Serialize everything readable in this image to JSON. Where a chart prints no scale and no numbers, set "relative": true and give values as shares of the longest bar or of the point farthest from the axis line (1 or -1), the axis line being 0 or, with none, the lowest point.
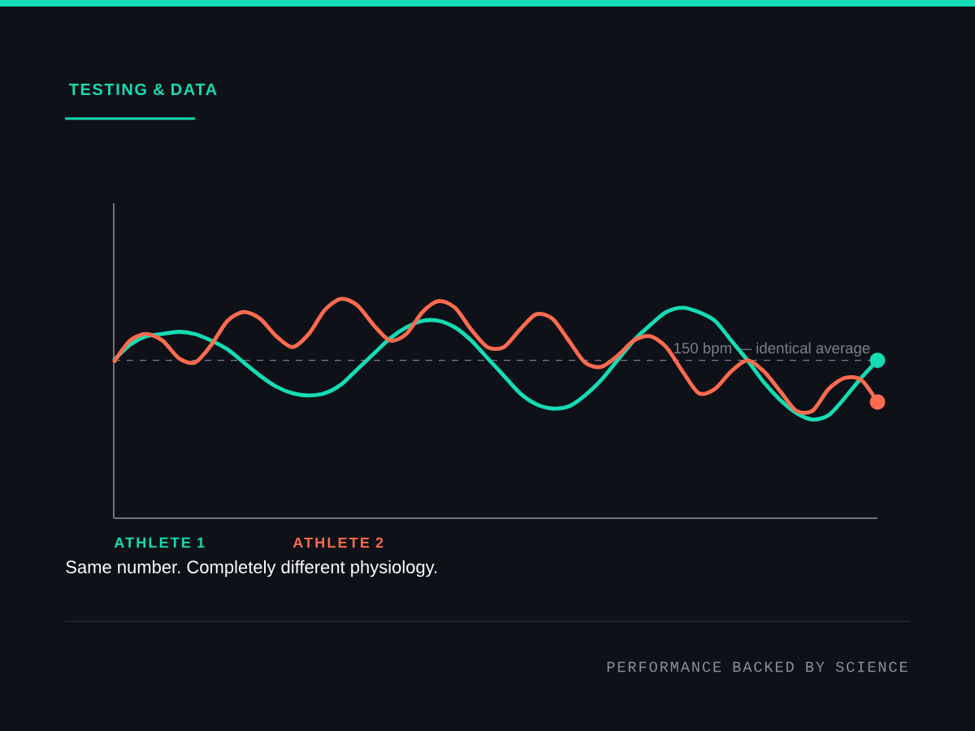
{
  "chart_data": {
    "type": "line",
    "title": "TESTING & DATA",
    "subtitle": "Same number. Completely different physiology.",
    "relative": true,
    "categories": [
      null,
      null,
      null,
      null,
      null,
      null,
      null,
      null,
      null,
      null,
      null,
      null,
      null,
      null,
      null,
      null,
      null,
      null,
      null,
      null,
      null,
      null,
      null,
      null,
      null,
      null,
      null,
      null,
      null,
      null,
      null,
      null,
      null,
      null,
      null,
      null,
      null,
      null,
      null,
      null,
      null,
      null,
      null,
      null,
      null,
      null,
      null,
      null
    ],
    "series": [
      {
        "name": "ATHLETE 1",
        "color": "#14dcb4",
        "values": [
          0.72,
          0.79,
          0.83,
          0.84,
          0.85,
          0.84,
          0.81,
          0.77,
          0.71,
          0.65,
          0.6,
          0.57,
          0.56,
          0.57,
          0.61,
          0.68,
          0.75,
          0.82,
          0.87,
          0.9,
          0.9,
          0.87,
          0.81,
          0.73,
          0.65,
          0.57,
          0.52,
          0.5,
          0.51,
          0.56,
          0.63,
          0.72,
          0.81,
          0.88,
          0.94,
          0.96,
          0.94,
          0.9,
          0.81,
          0.72,
          0.62,
          0.54,
          0.48,
          0.45,
          0.47,
          0.55,
          0.64,
          0.72
        ]
      },
      {
        "name": "ATHLETE 2",
        "color": "#ff6b4f",
        "values": [
          0.71,
          0.81,
          0.84,
          0.81,
          0.73,
          0.71,
          0.79,
          0.9,
          0.94,
          0.91,
          0.83,
          0.78,
          0.84,
          0.95,
          1.0,
          0.97,
          0.88,
          0.81,
          0.84,
          0.94,
          0.99,
          0.96,
          0.86,
          0.78,
          0.78,
          0.86,
          0.93,
          0.91,
          0.81,
          0.71,
          0.69,
          0.74,
          0.81,
          0.83,
          0.78,
          0.67,
          0.57,
          0.59,
          0.67,
          0.72,
          0.67,
          0.58,
          0.49,
          0.49,
          0.59,
          0.64,
          0.63,
          0.53
        ]
      }
    ],
    "ref_lines": [
      {
        "axis": "y",
        "value": 0.72,
        "label": "150 bpm — identical average",
        "color": "#7a8088",
        "line_style": "dashed"
      }
    ],
    "legend": "bottom left",
    "annotations": [
      "PERFORMANCE BACKED BY SCIENCE"
    ]
  }
}
